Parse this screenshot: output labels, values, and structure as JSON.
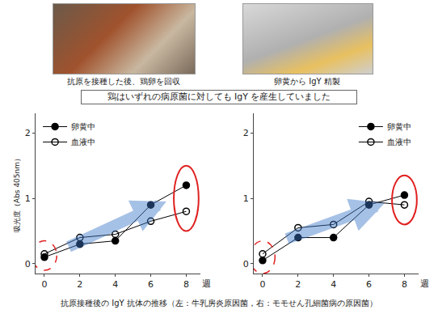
{
  "photo_captions": [
    "抗原を接種した後、鶏卵を回収",
    "卵黄から IgY 精製"
  ],
  "banner": "鶏はいずれの病原菌に対しても IgY を産生していました",
  "chart_data": [
    {
      "type": "line",
      "ylabel": "吸光度（Abs 405nm）",
      "xlabel": "週",
      "x": [
        0,
        2,
        4,
        6,
        8
      ],
      "series": [
        {
          "name": "卵黄中",
          "color": "#000000",
          "marker": "circle",
          "values": [
            0.1,
            0.3,
            0.35,
            0.9,
            1.2
          ]
        },
        {
          "name": "血液中",
          "color": "#000000",
          "marker": "circle-open",
          "values": [
            0.15,
            0.4,
            0.45,
            0.65,
            0.8
          ]
        }
      ],
      "xlim": [
        -0.5,
        8.8
      ],
      "xticks": [
        0,
        2,
        4,
        6,
        8
      ],
      "ylim": [
        -0.15,
        2.3
      ],
      "yticks": [
        0,
        1,
        2
      ],
      "legend": "top-left",
      "grid": false
    },
    {
      "type": "line",
      "xlabel": "週",
      "x": [
        0,
        2,
        4,
        6,
        8
      ],
      "series": [
        {
          "name": "卵黄中",
          "color": "#000000",
          "marker": "circle",
          "values": [
            0.05,
            0.4,
            0.4,
            0.9,
            1.05
          ]
        },
        {
          "name": "血液中",
          "color": "#000000",
          "marker": "circle-open",
          "values": [
            0.15,
            0.55,
            0.6,
            0.95,
            0.9
          ]
        }
      ],
      "xlim": [
        -0.5,
        8.8
      ],
      "xticks": [
        0,
        2,
        4,
        6,
        8
      ],
      "ylim": [
        -0.15,
        2.3
      ],
      "yticks": [
        0,
        1,
        2
      ],
      "legend": "top-right",
      "grid": false
    }
  ],
  "caption": "抗原接種後の IgY 抗体の推移（左：牛乳房炎原因菌，右：モモせん孔細菌病の原因菌）"
}
